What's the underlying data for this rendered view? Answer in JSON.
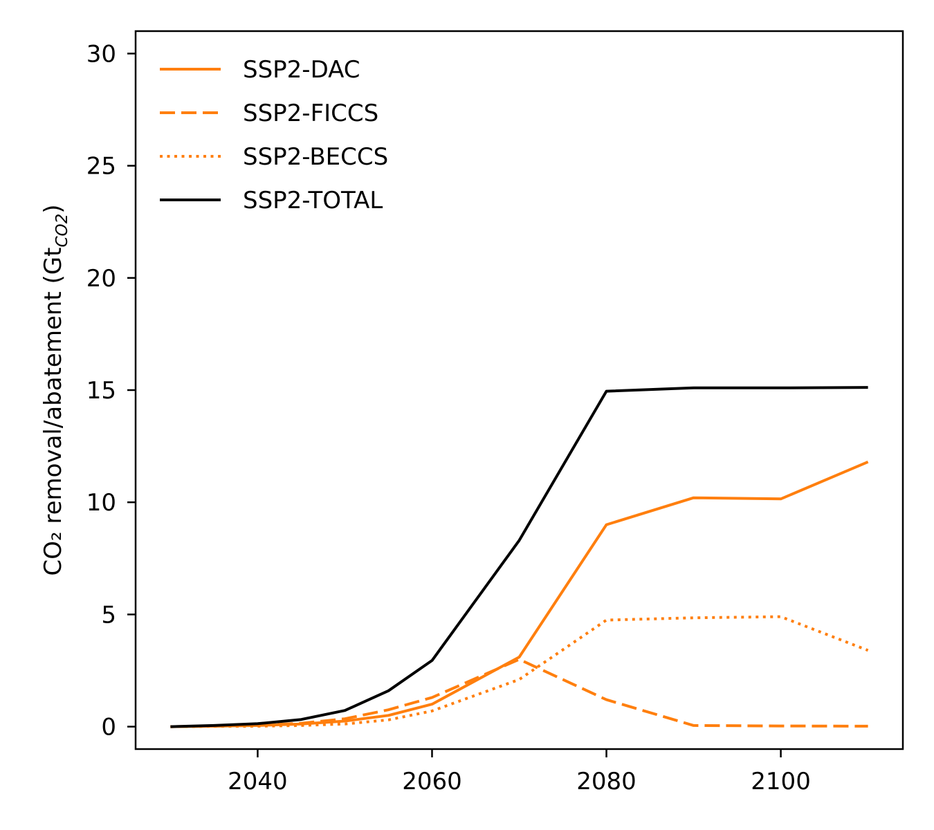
{
  "chart_data": {
    "type": "line",
    "ylabel": "CO₂ removal/abatement (Gt",
    "ylabel_subscript": "CO2",
    "ylabel_close": ")",
    "xlabel": "",
    "xlim": [
      2026,
      2114
    ],
    "ylim": [
      -1,
      31
    ],
    "xticks": [
      2040,
      2060,
      2080,
      2100
    ],
    "xtick_labels": [
      "2040",
      "2060",
      "2080",
      "2100"
    ],
    "yticks": [
      0,
      5,
      10,
      15,
      20,
      25,
      30
    ],
    "ytick_labels": [
      "0",
      "5",
      "10",
      "15",
      "20",
      "25",
      "30"
    ],
    "grid": false,
    "legend_position": "top-left",
    "series": [
      {
        "name": "SSP2-DAC",
        "color": "#ff7f0e",
        "dash": "solid",
        "x": [
          2030,
          2035,
          2040,
          2045,
          2050,
          2055,
          2060,
          2070,
          2080,
          2090,
          2100,
          2110
        ],
        "y": [
          0,
          0.02,
          0.05,
          0.12,
          0.25,
          0.5,
          1.0,
          3.1,
          9.0,
          10.2,
          10.15,
          11.8
        ]
      },
      {
        "name": "SSP2-FICCS",
        "color": "#ff7f0e",
        "dash": "dashed",
        "x": [
          2030,
          2035,
          2040,
          2045,
          2050,
          2055,
          2060,
          2070,
          2080,
          2090,
          2100,
          2110
        ],
        "y": [
          0,
          0.02,
          0.06,
          0.15,
          0.35,
          0.75,
          1.3,
          3.0,
          1.2,
          0.05,
          0.03,
          0.02
        ]
      },
      {
        "name": "SSP2-BECCS",
        "color": "#ff7f0e",
        "dash": "dotted",
        "x": [
          2030,
          2035,
          2040,
          2045,
          2050,
          2055,
          2060,
          2070,
          2080,
          2090,
          2100,
          2110
        ],
        "y": [
          0,
          0.01,
          0.02,
          0.05,
          0.12,
          0.3,
          0.7,
          2.1,
          4.75,
          4.85,
          4.9,
          3.4
        ]
      },
      {
        "name": "SSP2-TOTAL",
        "color": "#000000",
        "dash": "solid",
        "x": [
          2030,
          2035,
          2040,
          2045,
          2050,
          2055,
          2060,
          2070,
          2080,
          2090,
          2100,
          2110
        ],
        "y": [
          0,
          0.05,
          0.13,
          0.32,
          0.72,
          1.6,
          2.95,
          8.3,
          14.95,
          15.1,
          15.1,
          15.12
        ]
      }
    ]
  }
}
